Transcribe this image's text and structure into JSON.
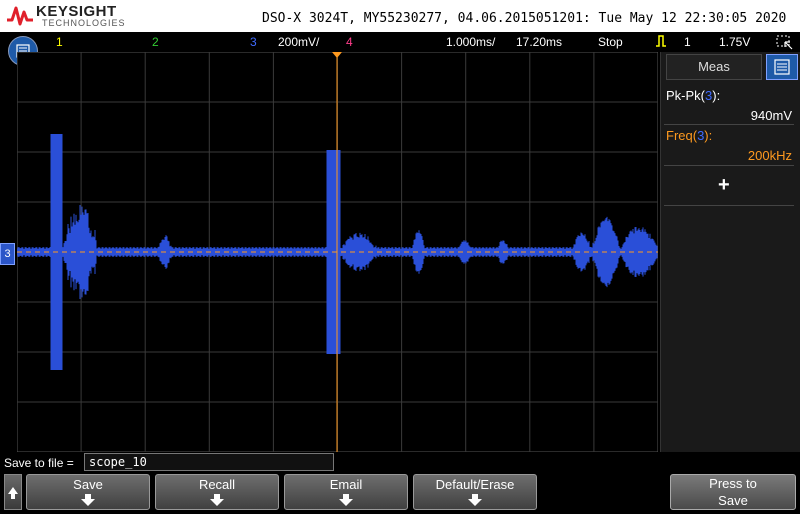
{
  "header": {
    "brand": "KEYSIGHT",
    "brand_sub": "TECHNOLOGIES",
    "device_line": "DSO-X 3024T, MY55230277, 04.06.2015051201: Tue May 12 22:30:05 2020"
  },
  "status": {
    "ch1": "1",
    "ch2": "2",
    "ch3": "3",
    "ch3_scale": "200mV/",
    "ch4": "4",
    "timebase": "1.000ms/",
    "delay": "17.20ms",
    "run_state": "Stop",
    "trigger_channel": "1",
    "trigger_level": "1.75V"
  },
  "ground_marker": "3",
  "measurements": {
    "tab_label": "Meas",
    "items": [
      {
        "label_prefix": "Pk-Pk(",
        "channel": "3",
        "label_suffix": "):",
        "value": "940mV",
        "color": "#ffffff"
      },
      {
        "label_prefix": "Freq(",
        "channel": "3",
        "label_suffix": "):",
        "value": "200kHz",
        "color": "#ff9a1f"
      }
    ],
    "add_symbol": "+"
  },
  "save": {
    "label": "Save to file =",
    "filename": "scope_10"
  },
  "softkeys": [
    "Save",
    "Recall",
    "Email",
    "Default/Erase"
  ],
  "press_key": {
    "line1": "Press to",
    "line2": "Save"
  },
  "colors": {
    "ch1": "#ffff00",
    "ch2": "#33cc33",
    "ch3": "#3f6bff",
    "ch4": "#ff3d8b",
    "trace": "#2a4fd8",
    "marker_orange": "#ff9a1f"
  },
  "icons": [
    "keysight-logo-icon",
    "menu-icon",
    "trigger-rising-edge-icon",
    "cursor-icon",
    "ground-marker-icon",
    "up-arrow-icon",
    "down-arrow-icon"
  ]
}
